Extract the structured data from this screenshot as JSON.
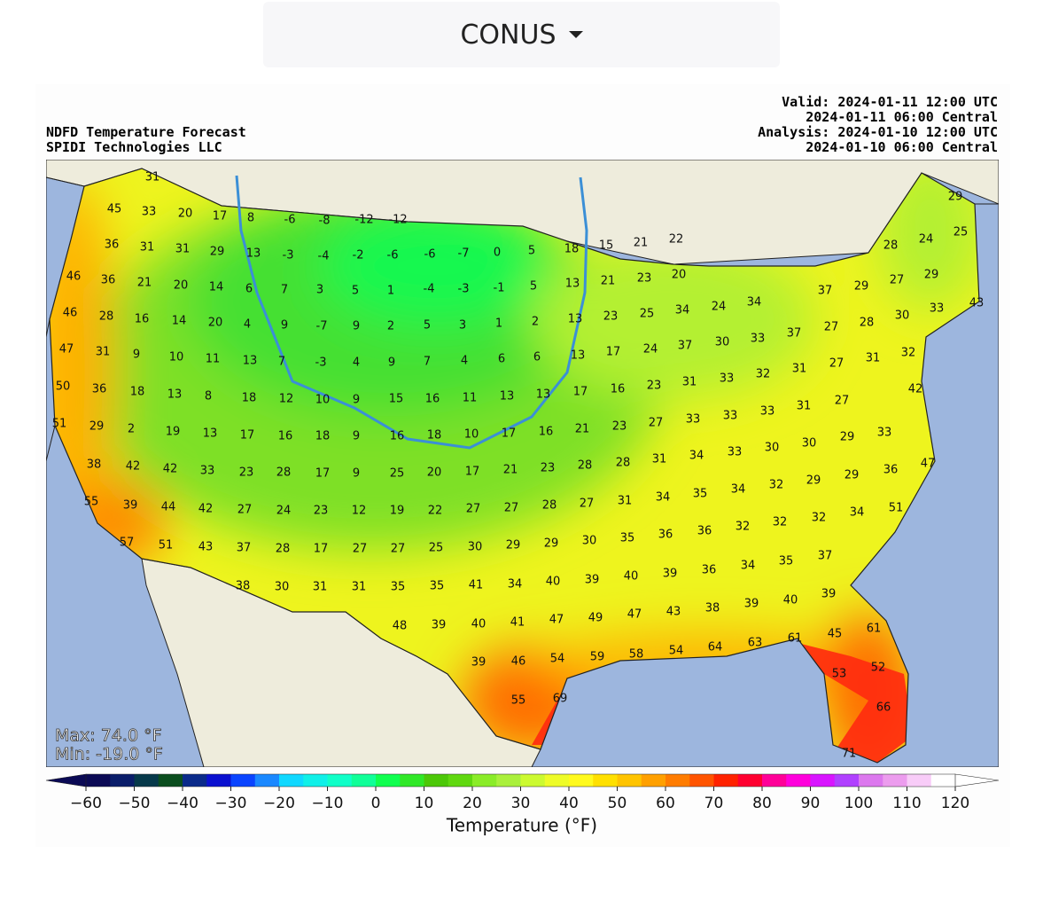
{
  "header": {
    "dropdown": "CONUS"
  },
  "map": {
    "title": [
      "NDFD Temperature Forecast",
      "SPIDI Technologies LLC"
    ],
    "times": [
      "Valid: 2024-01-11 12:00 UTC",
      "2024-01-11 06:00 Central",
      "Analysis: 2024-01-10 12:00 UTC",
      "2024-01-10 06:00 Central"
    ],
    "max": "Max: 74.0 °F",
    "min": "Min: -19.0 °F",
    "temperatures": [
      [
        31
      ],
      [
        45,
        33,
        20,
        17,
        8,
        -6,
        -8,
        -12,
        -12
      ],
      [
        36,
        31,
        31,
        29,
        13,
        -3,
        -4,
        -2,
        -6,
        -6,
        -7,
        0,
        5,
        18,
        15,
        21,
        22
      ],
      [
        46,
        36,
        21,
        20,
        14,
        6,
        7,
        3,
        5,
        1,
        -4,
        -3,
        -1,
        5,
        13,
        21,
        23,
        20
      ],
      [
        46,
        28,
        16,
        14,
        20,
        4,
        9,
        -7,
        9,
        2,
        5,
        3,
        1,
        2,
        13,
        23,
        25,
        34,
        24,
        34
      ],
      [
        47,
        31,
        9,
        10,
        11,
        13,
        7,
        -3,
        4,
        9,
        7,
        4,
        6,
        6,
        13,
        17,
        24,
        37,
        30,
        33,
        37
      ],
      [
        50,
        36,
        18,
        13,
        8,
        18,
        12,
        10,
        9,
        15,
        16,
        11,
        13,
        13,
        17,
        16,
        23,
        31,
        33,
        32,
        31,
        27,
        31,
        32
      ],
      [
        51,
        29,
        2,
        19,
        13,
        17,
        16,
        18,
        9,
        16,
        18,
        10,
        17,
        16,
        21,
        23,
        27,
        33,
        33,
        33,
        31,
        27,
        42
      ],
      [
        38,
        42,
        42,
        33,
        23,
        28,
        17,
        9,
        25,
        20,
        17,
        21,
        23,
        28,
        28,
        31,
        34,
        33,
        30,
        30,
        29,
        33
      ],
      [
        55,
        39,
        44,
        42,
        27,
        24,
        23,
        12,
        19,
        22,
        27,
        27,
        28,
        27,
        31,
        34,
        35,
        34,
        32,
        29,
        29,
        36,
        47
      ],
      [
        57,
        51,
        43,
        37,
        28,
        17,
        27,
        27,
        25,
        30,
        29,
        29,
        30,
        35,
        36,
        36,
        32,
        32,
        32,
        34,
        51
      ],
      [
        38,
        30,
        31,
        31,
        35,
        35,
        41,
        34,
        40,
        39,
        40,
        39,
        36,
        34,
        35,
        37
      ],
      [
        48,
        39,
        40,
        41,
        47,
        49,
        47,
        43,
        38,
        39,
        40,
        39
      ],
      [
        39,
        46,
        54,
        59,
        58,
        54,
        64,
        63,
        61,
        45,
        61
      ],
      [
        55,
        69,
        53,
        52,
        66,
        71
      ],
      [
        28,
        24,
        29,
        37,
        29,
        27,
        29,
        43,
        30,
        33,
        27,
        28,
        25
      ]
    ]
  },
  "colorbar": {
    "label": "Temperature (°F)",
    "lim": [
      -60,
      120
    ],
    "ticks": [
      {
        "value": -60,
        "label": "−60"
      },
      {
        "value": -50,
        "label": "−50"
      },
      {
        "value": -40,
        "label": "−40"
      },
      {
        "value": -30,
        "label": "−30"
      },
      {
        "value": -20,
        "label": "−20"
      },
      {
        "value": -10,
        "label": "−10"
      },
      0,
      10,
      20,
      30,
      40,
      50,
      60,
      70,
      80,
      90,
      100,
      110,
      120
    ],
    "colors": [
      "#0b0a55",
      "#0a1d6a",
      "#06394a",
      "#0a4d1e",
      "#0a2a8a",
      "#0a10d0",
      "#0a44ff",
      "#1a88ff",
      "#10d8ff",
      "#10f0e8",
      "#10ffc8",
      "#10ff98",
      "#10ff50",
      "#30e828",
      "#4cc808",
      "#60d810",
      "#8aec28",
      "#aaf03c",
      "#ccfa30",
      "#eefc28",
      "#fffa1e",
      "#ffe000",
      "#ffc400",
      "#ffa000",
      "#ff7c00",
      "#ff5400",
      "#ff2200",
      "#ff0030",
      "#ff0098",
      "#ff00dc",
      "#d814ff",
      "#b040ff",
      "#dc78ee",
      "#ec9cee",
      "#f8ccf8",
      "#ffffff"
    ],
    "under": "#0b0a55",
    "over": "#ffffff"
  }
}
